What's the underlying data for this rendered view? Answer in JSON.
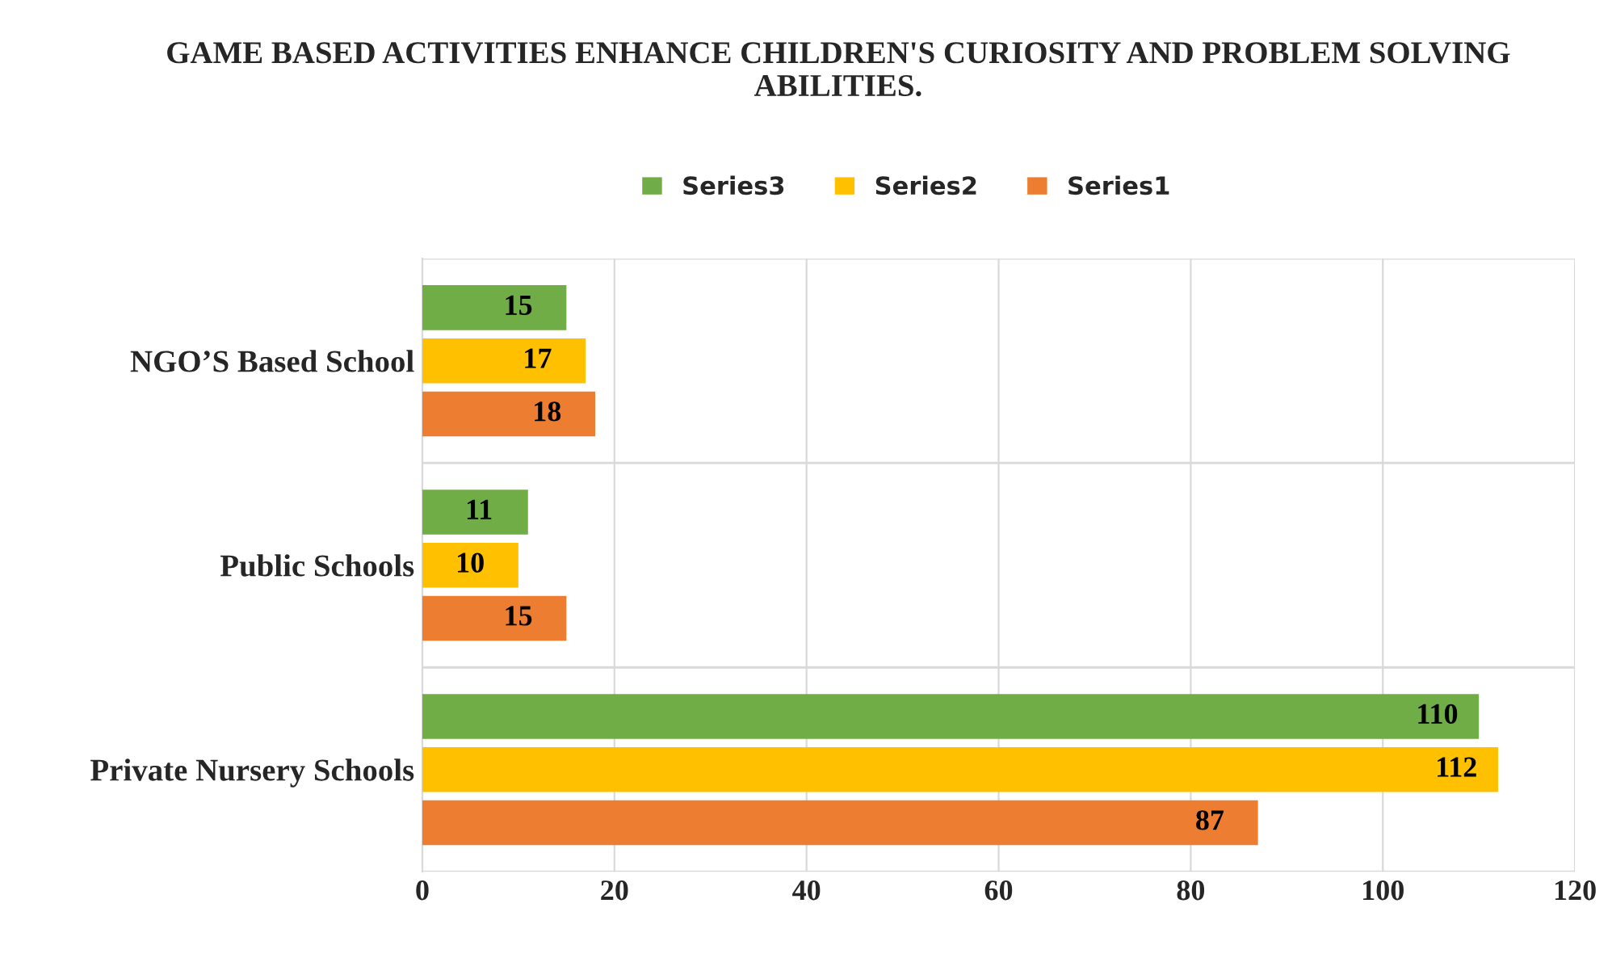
{
  "chart_data": {
    "type": "bar",
    "orientation": "horizontal",
    "title": "GAME BASED ACTIVITIES ENHANCE CHILDREN'S CURIOSITY AND PROBLEM SOLVING ABILITIES.",
    "categories": [
      "NGO’S Based School",
      "Public Schools",
      "Private Nursery Schools"
    ],
    "series": [
      {
        "name": "Series1",
        "color": "#ed7d31",
        "values": [
          18,
          15,
          87
        ]
      },
      {
        "name": "Series2",
        "color": "#ffc000",
        "values": [
          17,
          10,
          112
        ]
      },
      {
        "name": "Series3",
        "color": "#70ad47",
        "values": [
          15,
          11,
          110
        ]
      }
    ],
    "xlim": [
      0,
      120
    ],
    "xticks": [
      0,
      20,
      40,
      60,
      80,
      100,
      120
    ],
    "data_labels": true,
    "grid": "x",
    "legend": "top"
  }
}
